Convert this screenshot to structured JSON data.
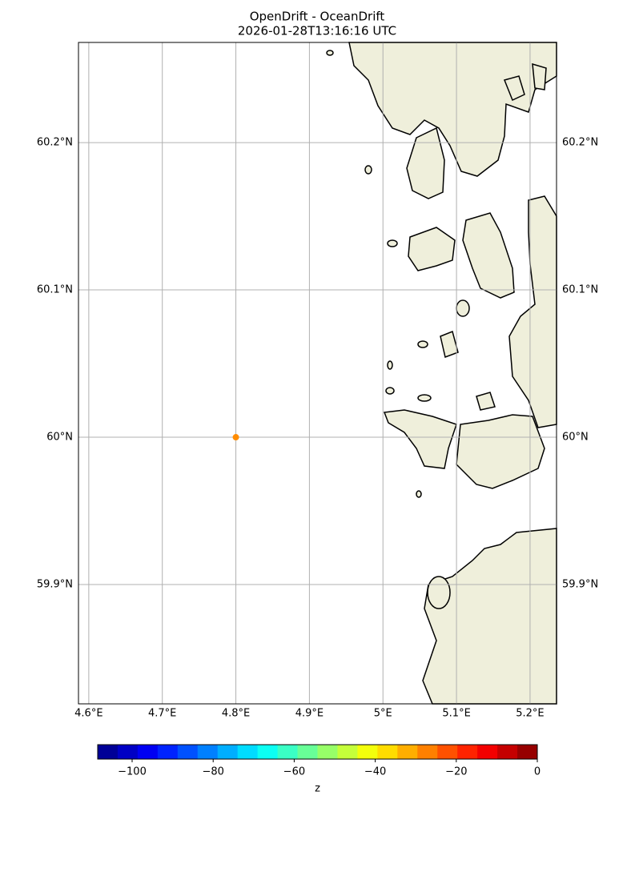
{
  "chart_data": {
    "type": "scatter",
    "title": "OpenDrift - OceanDrift",
    "subtitle": "2026-01-28T13:16:16 UTC",
    "xlim": [
      4.586,
      5.236
    ],
    "ylim": [
      59.819,
      60.268
    ],
    "xticks": [
      {
        "value": 4.6,
        "label": "4.6°E"
      },
      {
        "value": 4.7,
        "label": "4.7°E"
      },
      {
        "value": 4.8,
        "label": "4.8°E"
      },
      {
        "value": 4.9,
        "label": "4.9°E"
      },
      {
        "value": 5,
        "label": "5°E"
      },
      {
        "value": 5.1,
        "label": "5.1°E"
      },
      {
        "value": 5.2,
        "label": "5.2°E"
      }
    ],
    "yticks": [
      {
        "value": 59.9,
        "label": "59.9°N"
      },
      {
        "value": 60,
        "label": "60°N"
      },
      {
        "value": 60.1,
        "label": "60.1°N"
      },
      {
        "value": 60.2,
        "label": "60.2°N"
      }
    ],
    "grid": true,
    "series": [
      {
        "x": [
          4.8
        ],
        "values": [
          60.0
        ],
        "color": "#ff8c00"
      }
    ],
    "colorbar": {
      "label": "z",
      "colormap": "jet",
      "lim": [
        -108.5,
        0
      ],
      "ticks": [
        {
          "value": -100,
          "label": "−100"
        },
        {
          "value": -80,
          "label": "−80"
        },
        {
          "value": -60,
          "label": "−60"
        },
        {
          "value": -40,
          "label": "−40"
        },
        {
          "value": -20,
          "label": "−20"
        },
        0
      ]
    }
  }
}
